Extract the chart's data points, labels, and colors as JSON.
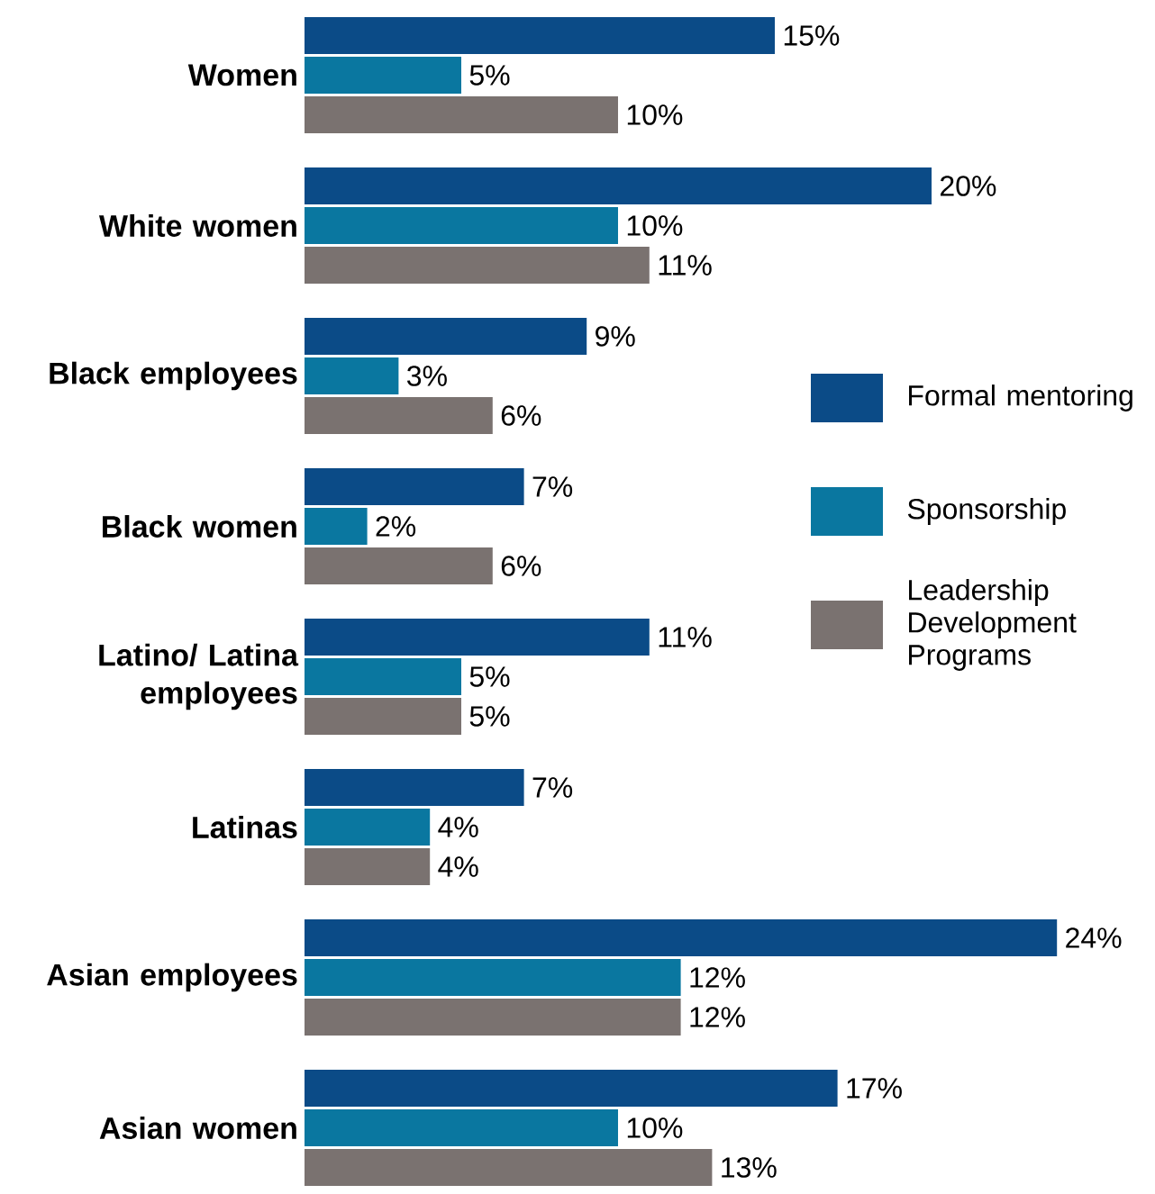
{
  "chart_data": {
    "type": "bar",
    "orientation": "horizontal",
    "legend": "right",
    "categories": [
      "Women",
      "White women",
      "Black employees",
      "Black women",
      "Latino/ Latina employees",
      "Latinas",
      "Asian employees",
      "Asian women"
    ],
    "series": [
      {
        "name": "Formal mentoring",
        "color": "#0b4b87",
        "values": [
          15,
          20,
          9,
          7,
          11,
          7,
          24,
          17
        ],
        "value_labels": [
          "15%",
          "20%",
          "9%",
          "7%",
          "11%",
          "7%",
          "24%",
          "17%"
        ]
      },
      {
        "name": "Sponsorship",
        "color": "#0a77a0",
        "values": [
          5,
          10,
          3,
          2,
          5,
          4,
          12,
          10
        ],
        "value_labels": [
          "5%",
          "10%",
          "3%",
          "2%",
          "5%",
          "4%",
          "12%",
          "10%"
        ]
      },
      {
        "name": "Leadership Development Programs",
        "color": "#7a7270",
        "values": [
          10,
          11,
          6,
          6,
          5,
          4,
          12,
          13
        ],
        "value_labels": [
          "10%",
          "11%",
          "6%",
          "6%",
          "5%",
          "4%",
          "12%",
          "13%"
        ]
      }
    ]
  }
}
